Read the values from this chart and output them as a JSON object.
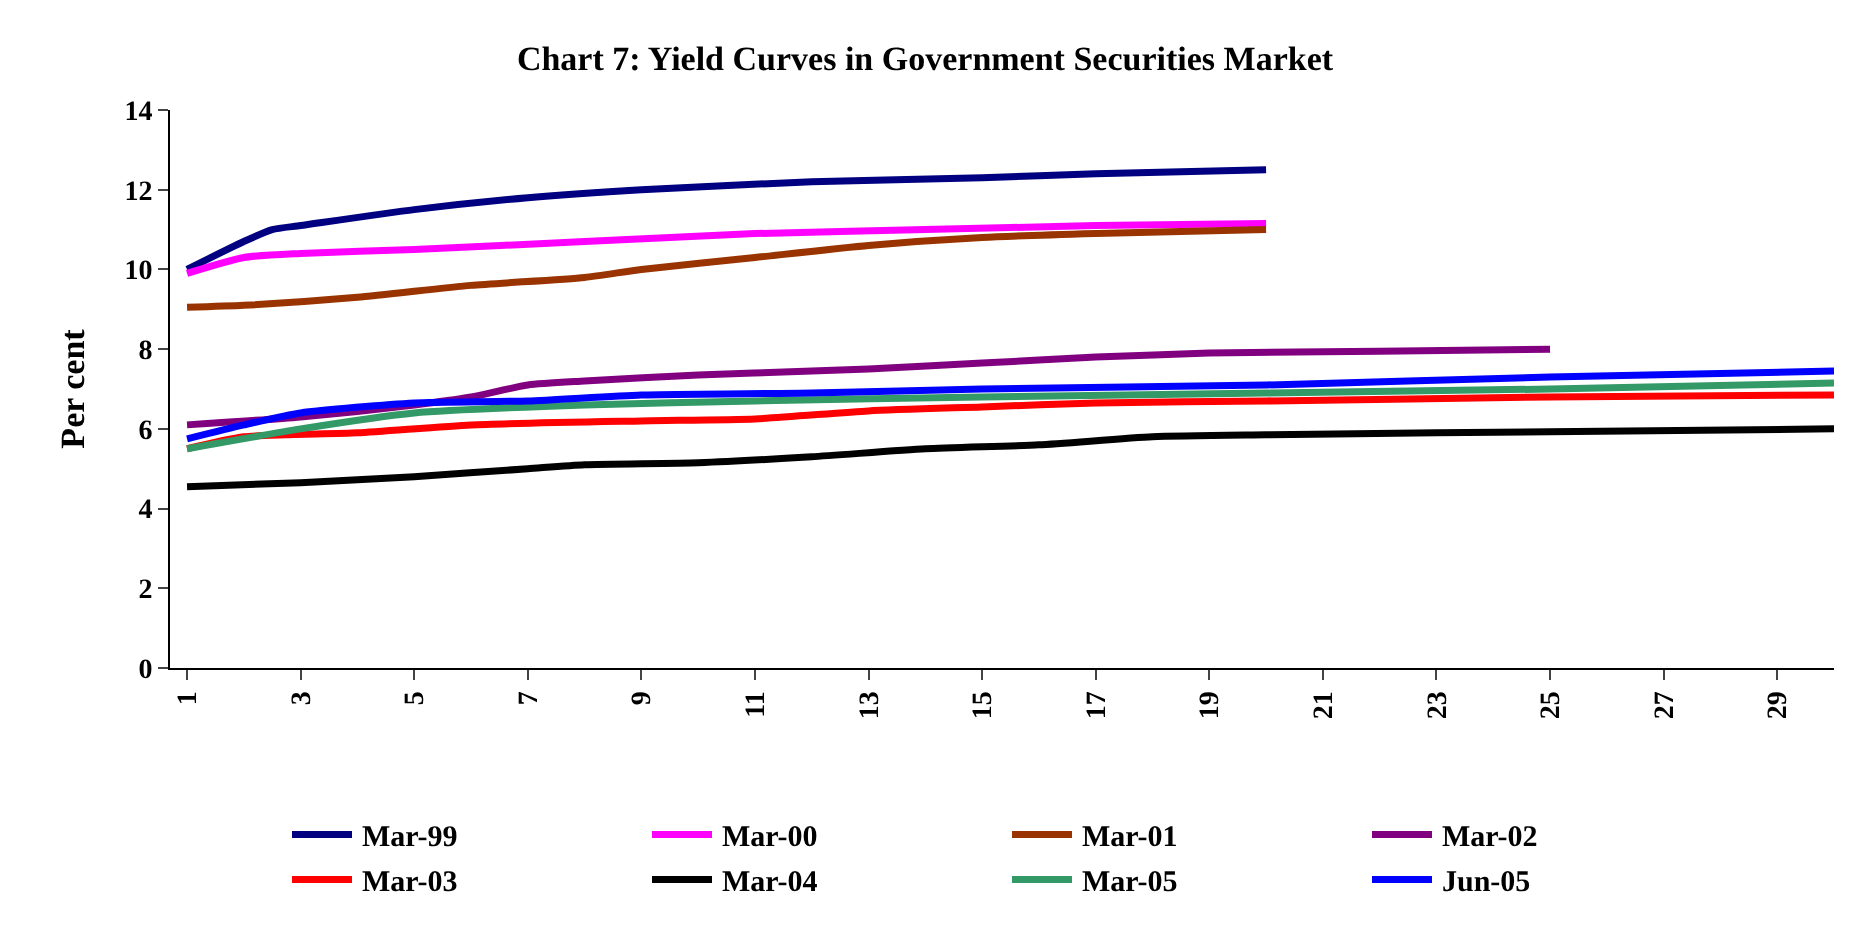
{
  "chart_data": {
    "type": "line",
    "title": "Chart 7: Yield Curves in Government Securities Market",
    "ylabel": "Per cent",
    "xlim": [
      0.7,
      30
    ],
    "xticks": [
      1,
      3,
      5,
      7,
      9,
      11,
      13,
      15,
      17,
      19,
      21,
      23,
      25,
      27,
      29
    ],
    "ylim": [
      0,
      14
    ],
    "yticks": [
      0,
      2,
      4,
      6,
      8,
      10,
      12,
      14
    ],
    "legend": "bottom",
    "marker": "none",
    "line_style": "solid",
    "series": [
      {
        "name": "Mar-99",
        "color": "#000080",
        "x": [
          1,
          2,
          2.5,
          3,
          5,
          7,
          9,
          12,
          15,
          17,
          20
        ],
        "values": [
          10.0,
          10.7,
          11.0,
          11.1,
          11.5,
          11.8,
          12.0,
          12.2,
          12.3,
          12.4,
          12.5
        ]
      },
      {
        "name": "Mar-00",
        "color": "#ff00ff",
        "x": [
          1,
          2,
          3,
          5,
          8,
          11,
          14,
          17,
          20
        ],
        "values": [
          9.9,
          10.3,
          10.4,
          10.5,
          10.7,
          10.9,
          11.0,
          11.1,
          11.15
        ]
      },
      {
        "name": "Mar-01",
        "color": "#993300",
        "x": [
          1,
          2,
          4,
          6,
          8,
          9,
          11,
          13,
          15,
          17,
          20
        ],
        "values": [
          9.05,
          9.1,
          9.3,
          9.6,
          9.8,
          10.0,
          10.3,
          10.6,
          10.8,
          10.9,
          11.0
        ]
      },
      {
        "name": "Mar-02",
        "color": "#800080",
        "x": [
          1,
          3,
          5,
          6,
          7,
          8,
          10,
          12,
          13,
          15,
          17,
          19,
          22,
          25
        ],
        "values": [
          6.1,
          6.3,
          6.6,
          6.8,
          7.1,
          7.2,
          7.35,
          7.45,
          7.5,
          7.65,
          7.8,
          7.9,
          7.95,
          8.0
        ]
      },
      {
        "name": "Mar-03",
        "color": "#ff0000",
        "x": [
          1,
          2,
          4,
          6,
          9,
          11,
          13,
          15,
          17,
          20,
          25,
          30
        ],
        "values": [
          5.5,
          5.8,
          5.9,
          6.1,
          6.2,
          6.25,
          6.45,
          6.55,
          6.65,
          6.7,
          6.8,
          6.85
        ]
      },
      {
        "name": "Mar-04",
        "color": "#000000",
        "x": [
          1,
          3,
          5,
          7,
          8,
          10,
          12,
          14,
          16,
          18,
          20,
          23,
          30
        ],
        "values": [
          4.55,
          4.65,
          4.8,
          5.0,
          5.1,
          5.15,
          5.3,
          5.5,
          5.6,
          5.8,
          5.85,
          5.9,
          6.0
        ]
      },
      {
        "name": "Mar-05",
        "color": "#339966",
        "x": [
          1,
          3,
          5,
          8,
          11,
          15,
          20,
          25,
          30
        ],
        "values": [
          5.5,
          6.0,
          6.4,
          6.6,
          6.7,
          6.8,
          6.9,
          7.0,
          7.15
        ]
      },
      {
        "name": "Jun-05",
        "color": "#0000ff",
        "x": [
          1,
          2,
          3,
          5,
          7,
          9,
          12,
          15,
          20,
          25,
          30
        ],
        "values": [
          5.75,
          6.1,
          6.4,
          6.65,
          6.7,
          6.85,
          6.9,
          7.0,
          7.1,
          7.3,
          7.45
        ]
      }
    ]
  }
}
